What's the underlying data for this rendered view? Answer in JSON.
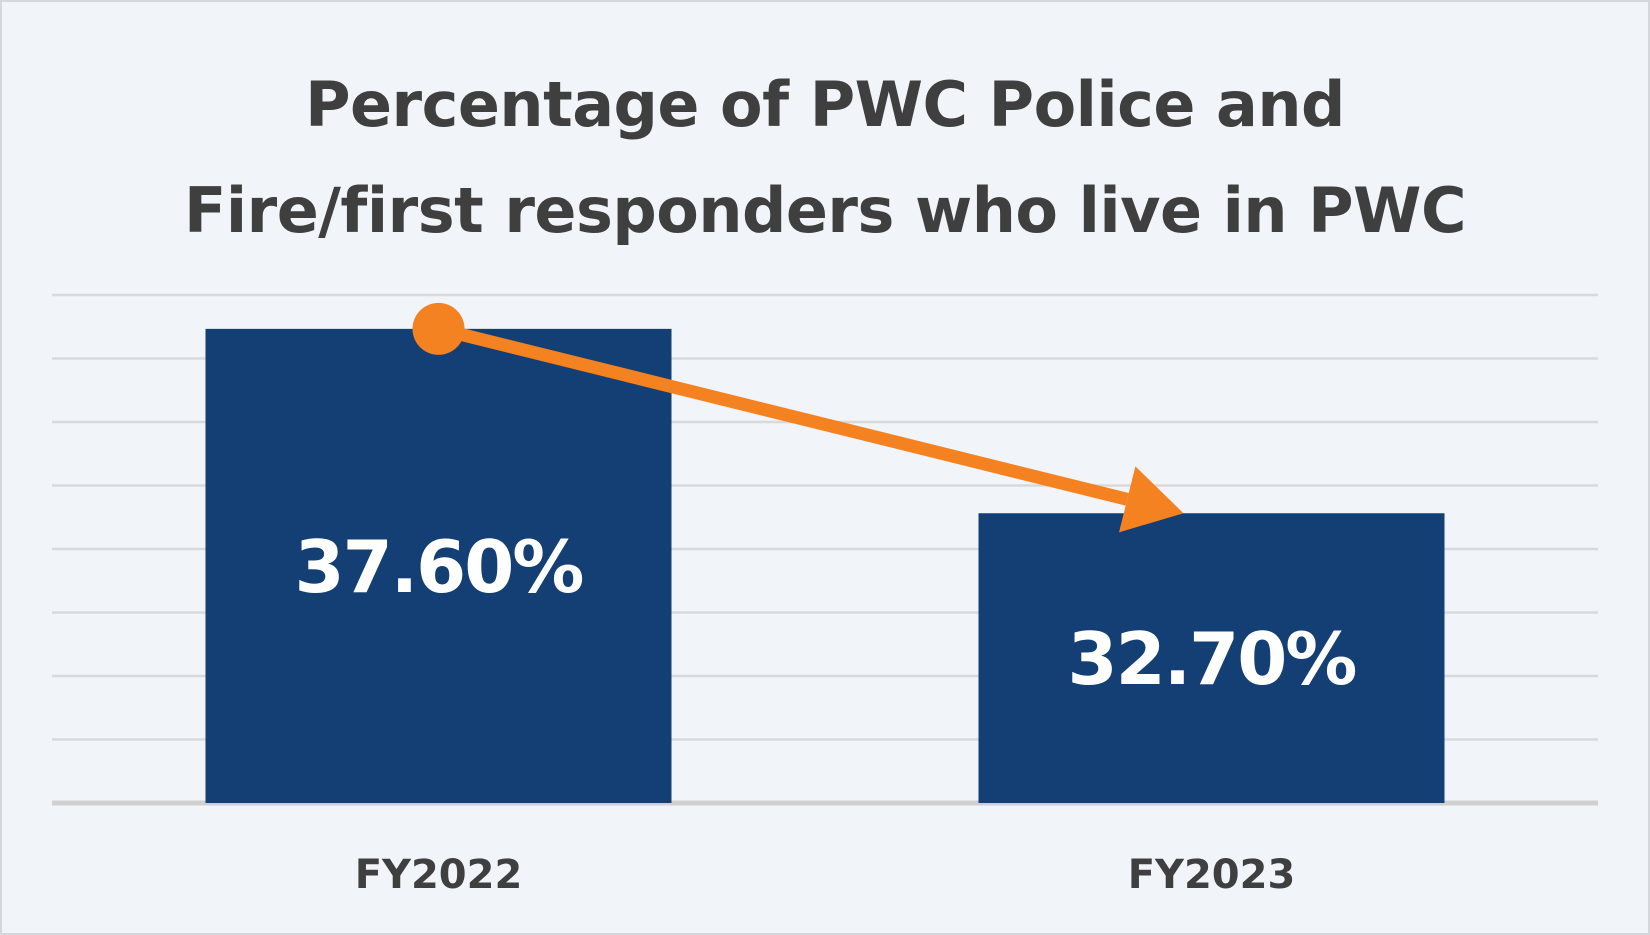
{
  "chart_data": {
    "type": "bar",
    "title_lines": [
      "Percentage of PWC Police and",
      "Fire/first responders who live in PWC"
    ],
    "categories": [
      "FY2022",
      "FY2023"
    ],
    "values": [
      37.6,
      32.7
    ],
    "data_labels": [
      "37.60%",
      "32.70%"
    ],
    "xlabel": "",
    "ylabel": "",
    "ylim": [
      25,
      38.5
    ],
    "grid": true,
    "legend": "none",
    "annotation": "trend-arrow",
    "colors": {
      "bar": "#133f74",
      "arrow": "#f58220",
      "grid": "#d9d9d9",
      "baseline": "#d0d0d0",
      "background": "#f1f4f9",
      "text": "#3f3f3f"
    }
  }
}
